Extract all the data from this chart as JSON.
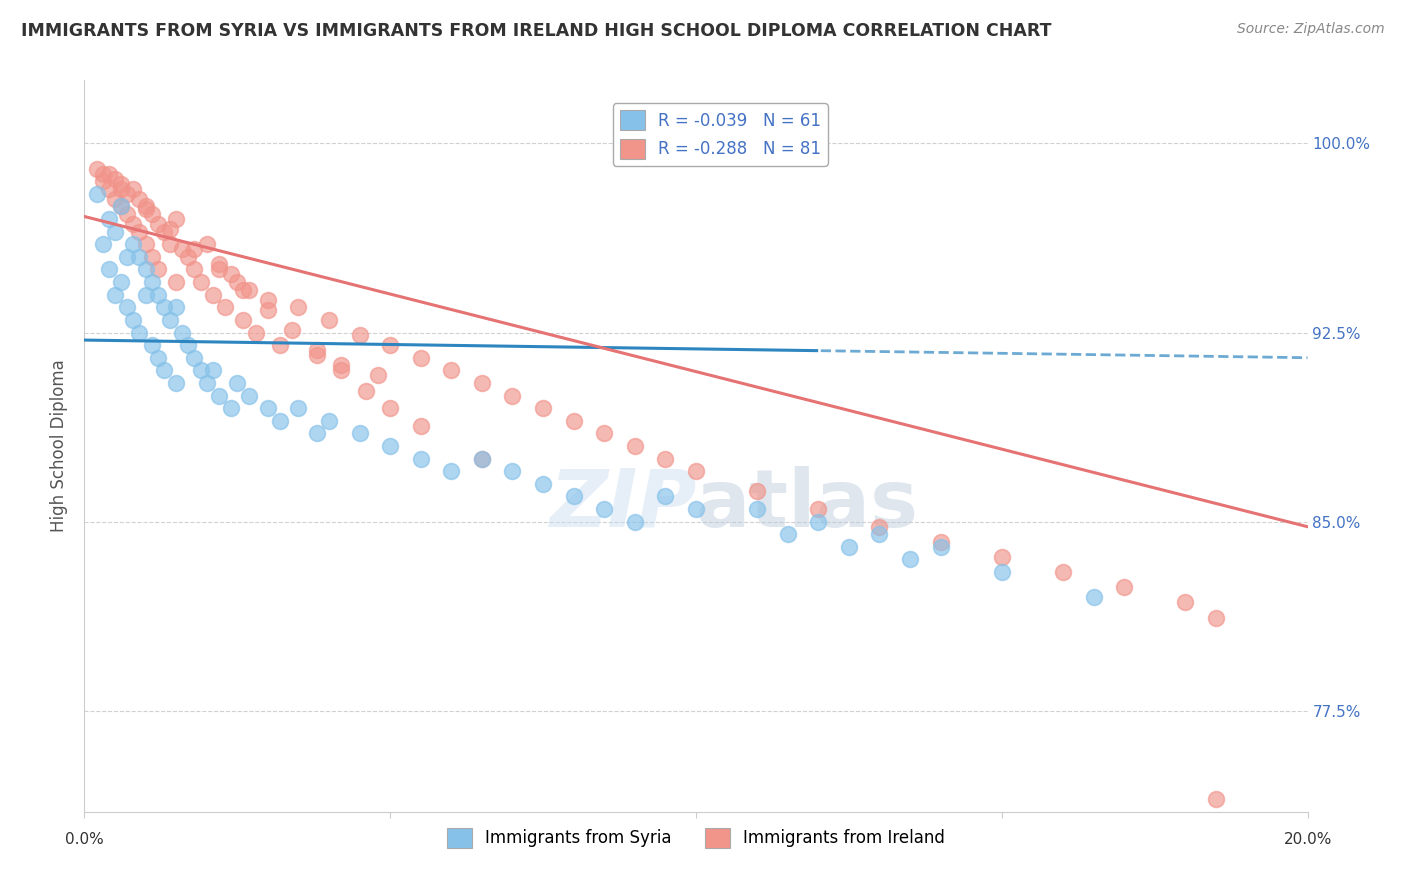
{
  "title": "IMMIGRANTS FROM SYRIA VS IMMIGRANTS FROM IRELAND HIGH SCHOOL DIPLOMA CORRELATION CHART",
  "source": "Source: ZipAtlas.com",
  "ylabel": "High School Diploma",
  "xlim": [
    0.0,
    0.2
  ],
  "ylim": [
    0.735,
    1.025
  ],
  "syria_R": -0.039,
  "syria_N": 61,
  "ireland_R": -0.288,
  "ireland_N": 81,
  "syria_color": "#85C1E9",
  "ireland_color": "#F1948A",
  "syria_line_color": "#2E86C1",
  "ireland_line_color": "#E57373",
  "legend_label_syria": "Immigrants from Syria",
  "legend_label_ireland": "Immigrants from Ireland",
  "watermark_zip": "ZIP",
  "watermark_atlas": "atlas",
  "background_color": "#ffffff",
  "grid_color": "#cccccc",
  "title_color": "#333333",
  "right_tick_color": "#4472C4",
  "yright_ticks": [
    0.775,
    0.85,
    0.925,
    1.0
  ],
  "yright_labels": [
    "77.5%",
    "85.0%",
    "92.5%",
    "100.0%"
  ],
  "syria_scatter_x": [
    0.002,
    0.003,
    0.004,
    0.004,
    0.005,
    0.005,
    0.006,
    0.006,
    0.007,
    0.007,
    0.008,
    0.008,
    0.009,
    0.009,
    0.01,
    0.01,
    0.011,
    0.011,
    0.012,
    0.012,
    0.013,
    0.013,
    0.014,
    0.015,
    0.015,
    0.016,
    0.017,
    0.018,
    0.019,
    0.02,
    0.021,
    0.022,
    0.024,
    0.025,
    0.027,
    0.03,
    0.032,
    0.035,
    0.038,
    0.04,
    0.045,
    0.05,
    0.055,
    0.06,
    0.065,
    0.07,
    0.075,
    0.08,
    0.085,
    0.09,
    0.095,
    0.1,
    0.11,
    0.12,
    0.13,
    0.14,
    0.115,
    0.125,
    0.135,
    0.15,
    0.165
  ],
  "syria_scatter_y": [
    0.98,
    0.96,
    0.97,
    0.95,
    0.965,
    0.94,
    0.975,
    0.945,
    0.955,
    0.935,
    0.96,
    0.93,
    0.955,
    0.925,
    0.95,
    0.94,
    0.945,
    0.92,
    0.94,
    0.915,
    0.935,
    0.91,
    0.93,
    0.935,
    0.905,
    0.925,
    0.92,
    0.915,
    0.91,
    0.905,
    0.91,
    0.9,
    0.895,
    0.905,
    0.9,
    0.895,
    0.89,
    0.895,
    0.885,
    0.89,
    0.885,
    0.88,
    0.875,
    0.87,
    0.875,
    0.87,
    0.865,
    0.86,
    0.855,
    0.85,
    0.86,
    0.855,
    0.855,
    0.85,
    0.845,
    0.84,
    0.845,
    0.84,
    0.835,
    0.83,
    0.82
  ],
  "ireland_scatter_x": [
    0.002,
    0.003,
    0.004,
    0.004,
    0.005,
    0.005,
    0.006,
    0.006,
    0.007,
    0.007,
    0.008,
    0.008,
    0.009,
    0.009,
    0.01,
    0.01,
    0.011,
    0.011,
    0.012,
    0.012,
    0.013,
    0.014,
    0.015,
    0.015,
    0.016,
    0.017,
    0.018,
    0.019,
    0.02,
    0.021,
    0.022,
    0.023,
    0.024,
    0.025,
    0.026,
    0.027,
    0.028,
    0.03,
    0.032,
    0.035,
    0.038,
    0.04,
    0.042,
    0.045,
    0.048,
    0.05,
    0.055,
    0.06,
    0.065,
    0.07,
    0.075,
    0.08,
    0.085,
    0.09,
    0.095,
    0.1,
    0.11,
    0.12,
    0.13,
    0.14,
    0.15,
    0.16,
    0.17,
    0.18,
    0.185,
    0.003,
    0.006,
    0.01,
    0.014,
    0.018,
    0.022,
    0.026,
    0.03,
    0.034,
    0.038,
    0.042,
    0.046,
    0.05,
    0.055,
    0.065,
    0.185
  ],
  "ireland_scatter_y": [
    0.99,
    0.985,
    0.988,
    0.982,
    0.986,
    0.978,
    0.984,
    0.975,
    0.98,
    0.972,
    0.982,
    0.968,
    0.978,
    0.965,
    0.975,
    0.96,
    0.972,
    0.955,
    0.968,
    0.95,
    0.965,
    0.96,
    0.97,
    0.945,
    0.958,
    0.955,
    0.95,
    0.945,
    0.96,
    0.94,
    0.952,
    0.935,
    0.948,
    0.945,
    0.93,
    0.942,
    0.925,
    0.938,
    0.92,
    0.935,
    0.916,
    0.93,
    0.912,
    0.924,
    0.908,
    0.92,
    0.915,
    0.91,
    0.905,
    0.9,
    0.895,
    0.89,
    0.885,
    0.88,
    0.875,
    0.87,
    0.862,
    0.855,
    0.848,
    0.842,
    0.836,
    0.83,
    0.824,
    0.818,
    0.812,
    0.988,
    0.982,
    0.974,
    0.966,
    0.958,
    0.95,
    0.942,
    0.934,
    0.926,
    0.918,
    0.91,
    0.902,
    0.895,
    0.888,
    0.875,
    0.74
  ]
}
